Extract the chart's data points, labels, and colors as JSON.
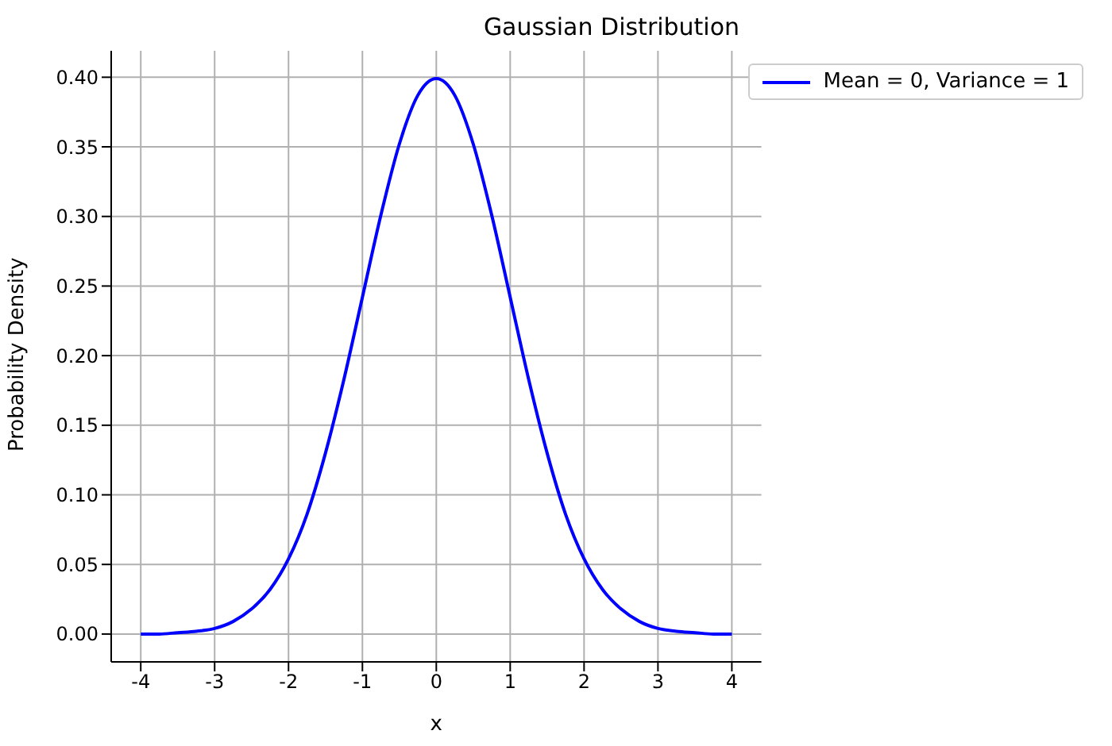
{
  "chart_data": {
    "type": "line",
    "title": "Gaussian Distribution",
    "xlabel": "x",
    "ylabel": "Probability Density",
    "x": [
      -4,
      -3.75,
      -3.5,
      -3.25,
      -3,
      -2.75,
      -2.5,
      -2.25,
      -2,
      -1.75,
      -1.5,
      -1.25,
      -1,
      -0.75,
      -0.5,
      -0.25,
      0,
      0.25,
      0.5,
      0.75,
      1,
      1.25,
      1.5,
      1.75,
      2,
      2.25,
      2.5,
      2.75,
      3,
      3.25,
      3.5,
      3.75,
      4
    ],
    "series": [
      {
        "name": "Mean = 0, Variance = 1",
        "color": "#0000ff",
        "values": [
          0.0,
          0.0,
          0.001,
          0.002,
          0.004,
          0.009,
          0.018,
          0.032,
          0.054,
          0.086,
          0.13,
          0.183,
          0.242,
          0.301,
          0.352,
          0.387,
          0.399,
          0.387,
          0.352,
          0.301,
          0.242,
          0.183,
          0.13,
          0.086,
          0.054,
          0.032,
          0.018,
          0.009,
          0.004,
          0.002,
          0.001,
          0.0,
          0.0
        ]
      }
    ],
    "xlim": [
      -4.4,
      4.4
    ],
    "xticks": [
      -4,
      -3,
      -2,
      -1,
      0,
      1,
      2,
      3,
      4
    ],
    "ylim": [
      -0.02,
      0.419
    ],
    "yticks": [
      {
        "value": 0,
        "label": "0.00"
      },
      {
        "value": 0.05,
        "label": "0.05"
      },
      {
        "value": 0.1,
        "label": "0.10"
      },
      {
        "value": 0.15,
        "label": "0.15"
      },
      {
        "value": 0.2,
        "label": "0.20"
      },
      {
        "value": 0.25,
        "label": "0.25"
      },
      {
        "value": 0.3,
        "label": "0.30"
      },
      {
        "value": 0.35,
        "label": "0.35"
      },
      {
        "value": 0.4,
        "label": "0.40"
      }
    ],
    "grid": true,
    "legend": "top right",
    "marker": "none",
    "line_style": "solid"
  }
}
